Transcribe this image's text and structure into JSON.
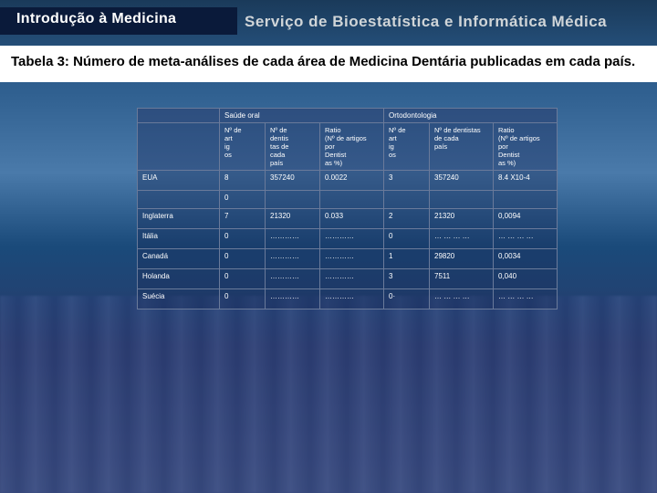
{
  "header": {
    "title": "Introdução à Medicina",
    "service": "Serviço de Bioestatística e Informática Médica"
  },
  "caption": "Tabela 3: Número de meta-análises de cada área de Medicina Dentária publicadas em cada país.",
  "groups": {
    "g1": "Saúde oral",
    "g2": "Ortodontologia"
  },
  "subheaders": {
    "h1": "Nº de\n          art\n          ig\n          os",
    "h2": "Nº de\n       dentis\n       tas de\n       cada\n       país",
    "h3": "Ratio\n(Nº de artigos\n        por\n        Dentist\n        as %)",
    "h4": "Nº de\n          art\n          ig\n          os",
    "h5": "Nº de dentistas\n          de cada\n          país",
    "h6": "Ratio\n(Nº de artigos\n        por\n        Dentist\n        as %)"
  },
  "rows": [
    {
      "country": "EUA",
      "c1": "8",
      "c2": "357240",
      "c3": "0.0022",
      "c4": "3",
      "c5": "357240",
      "c6": "8.4 X10-4"
    },
    {
      "country": " ",
      "c1": "0",
      "c2": "",
      "c3": "",
      "c4": "",
      "c5": "",
      "c6": "",
      "extra": true
    },
    {
      "country": "Inglaterra",
      "c1": "7",
      "c2": "21320",
      "c3": "0.033",
      "c4": "2",
      "c5": "21320",
      "c6": "0,0094"
    },
    {
      "country": "Itália",
      "c1": "0",
      "c2": "…………",
      "c3": "…………",
      "c4": "0",
      "c5": "… … … …",
      "c6": "… … … …"
    },
    {
      "country": "Canadá",
      "c1": "0",
      "c2": "…………",
      "c3": "…………",
      "c4": "1",
      "c5": "29820",
      "c6": "0,0034"
    },
    {
      "country": "Holanda",
      "c1": "0",
      "c2": "…………",
      "c3": "…………",
      "c4": "3",
      "c5": "7511",
      "c6": "0,040"
    },
    {
      "country": "Suécia",
      "c1": "0",
      "c2": "…………",
      "c3": "…………",
      "c4": "0·",
      "c5": "… … … …",
      "c6": "… … … …"
    }
  ]
}
